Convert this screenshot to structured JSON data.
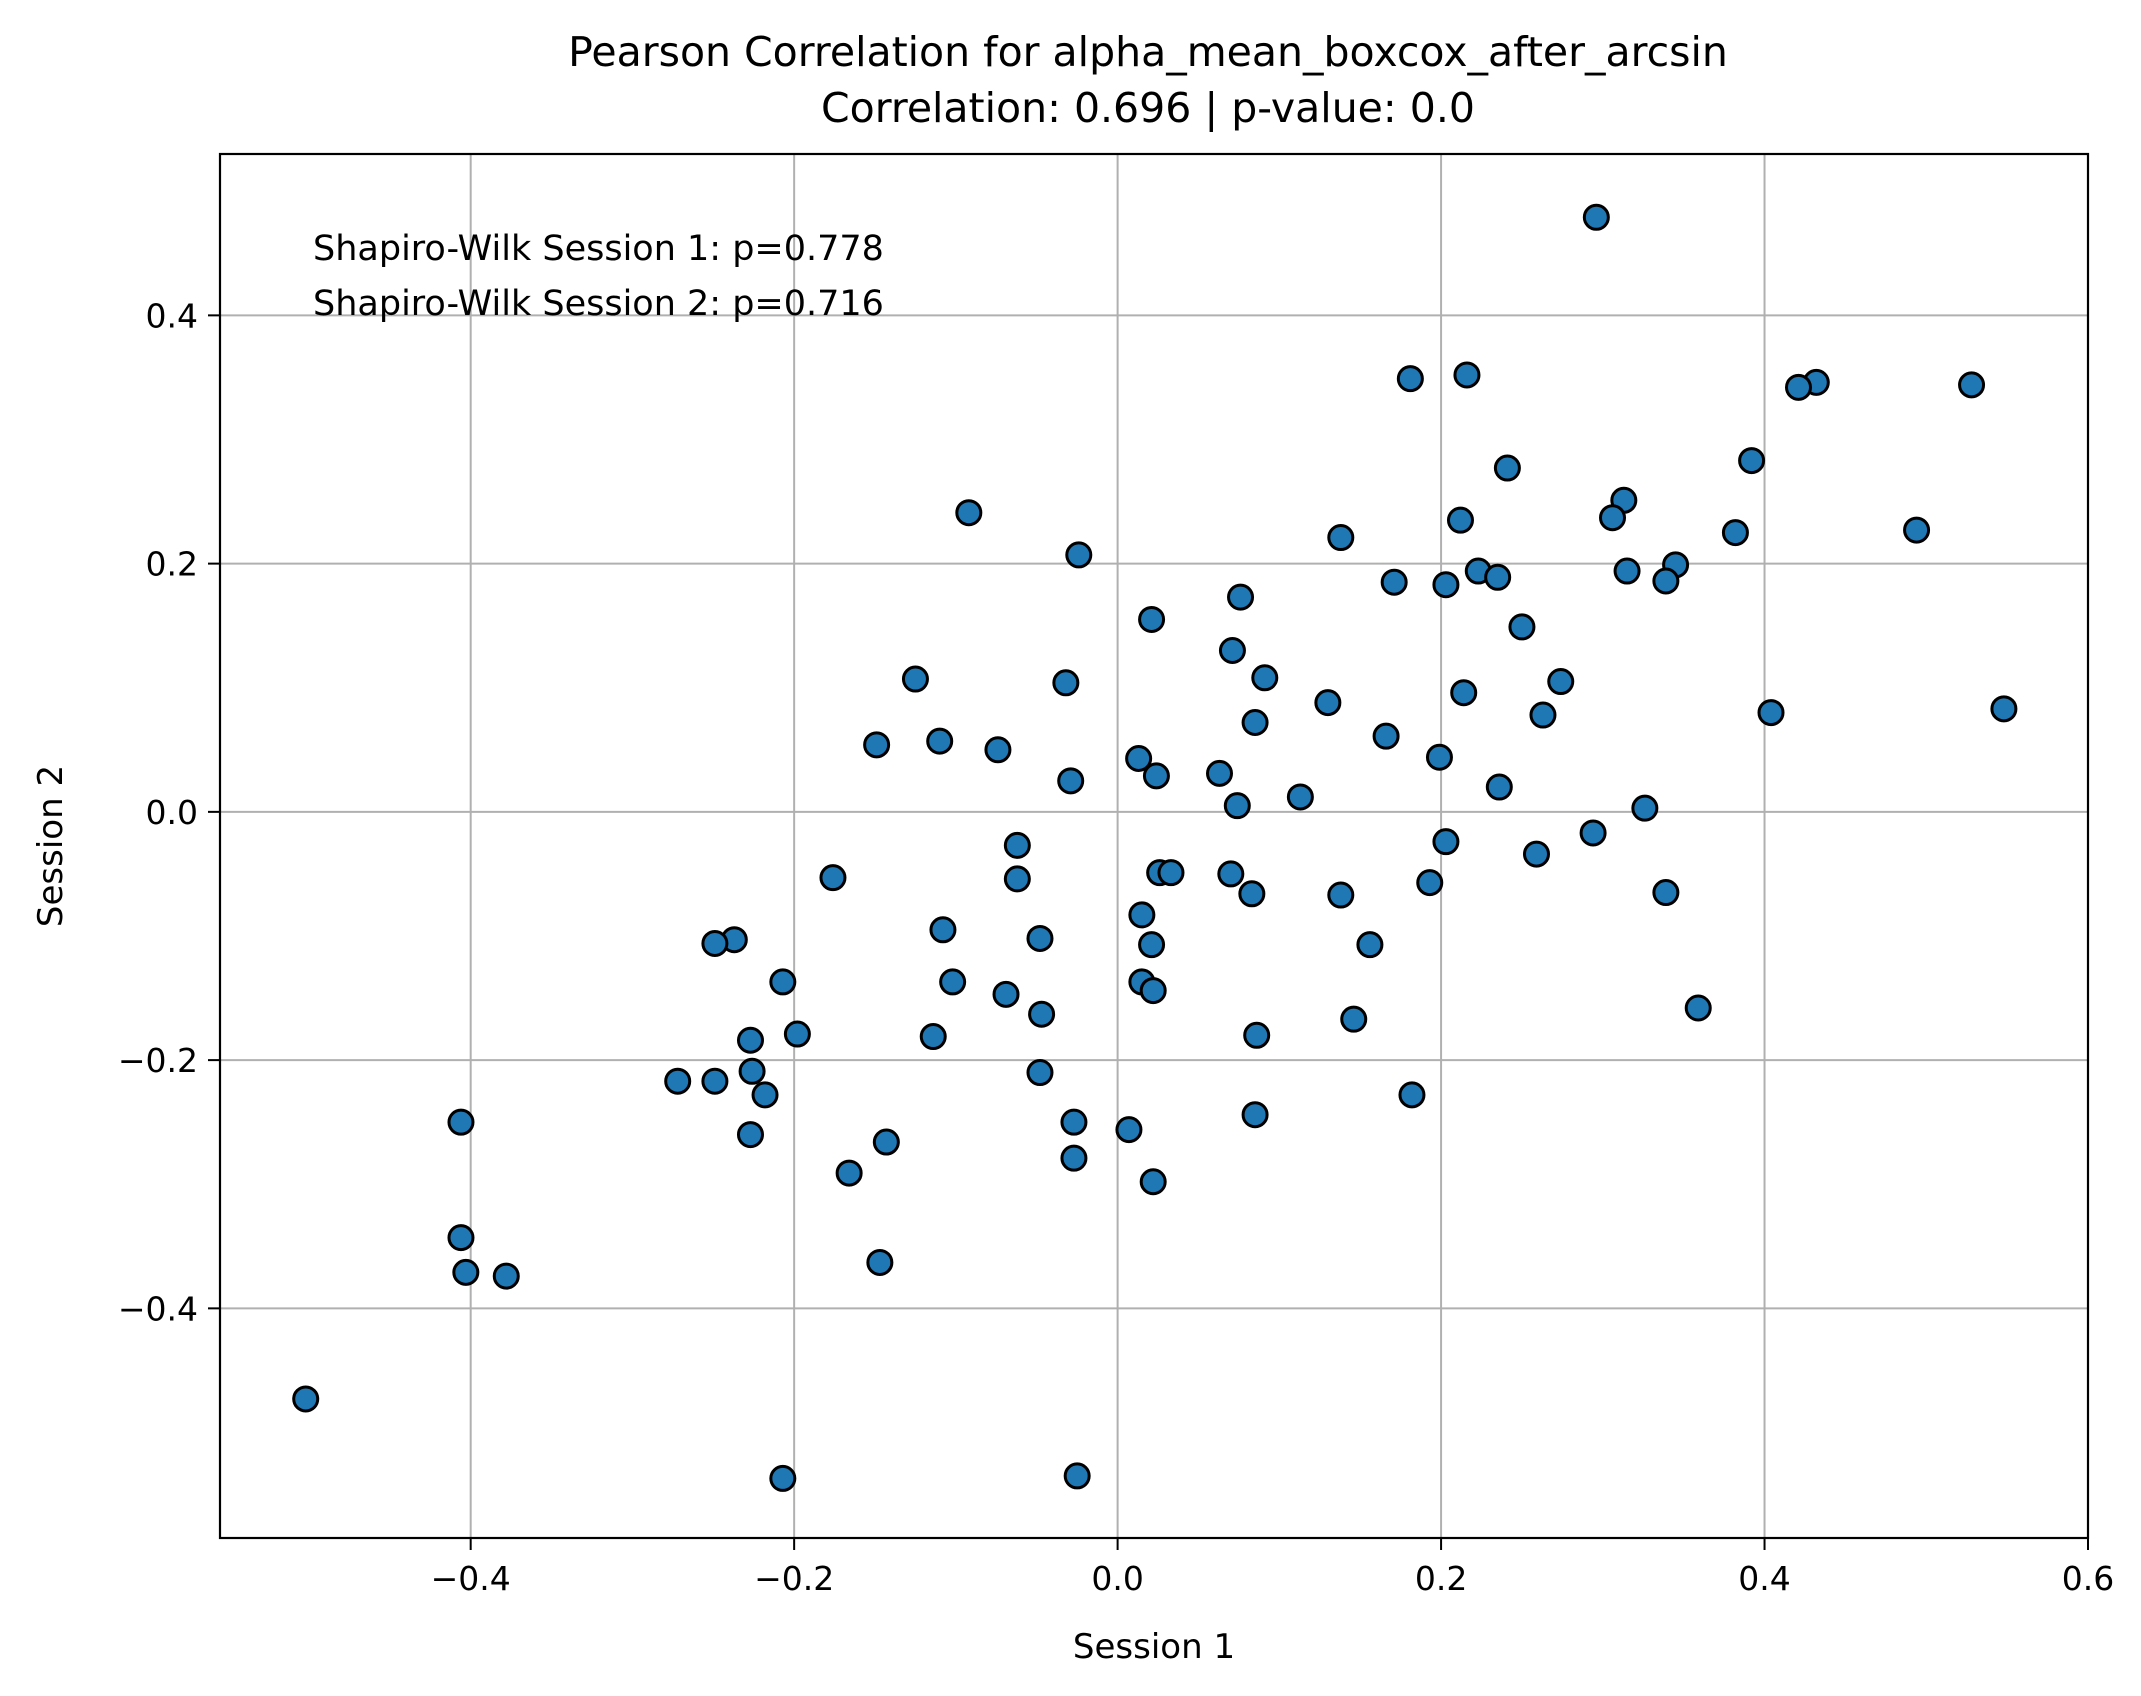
{
  "chart_data": {
    "type": "scatter",
    "title": "Pearson Correlation for alpha_mean_boxcox_after_arcsin",
    "subtitle": "Correlation: 0.696 | p-value: 0.0",
    "xlabel": "Session 1",
    "ylabel": "Session 2",
    "xlim": [
      -0.555,
      0.6
    ],
    "ylim": [
      -0.585,
      0.53
    ],
    "xticks": [
      -0.4,
      -0.2,
      0.0,
      0.2,
      0.4,
      0.6
    ],
    "yticks": [
      -0.4,
      -0.2,
      0.0,
      0.2,
      0.4
    ],
    "xtick_labels": [
      "−0.4",
      "−0.2",
      "0.0",
      "0.2",
      "0.4",
      "0.6"
    ],
    "ytick_labels": [
      "−0.4",
      "−0.2",
      "0.0",
      "0.2",
      "0.4"
    ],
    "grid": true,
    "marker_color": "#1f77b4",
    "marker_edge_color": "#000000",
    "annotations": [
      "Shapiro-Wilk Session 1: p=0.778",
      "Shapiro-Wilk Session 2: p=0.716"
    ],
    "points": [
      [
        0.296,
        0.479
      ],
      [
        0.216,
        0.352
      ],
      [
        0.181,
        0.349
      ],
      [
        0.432,
        0.346
      ],
      [
        0.421,
        0.342
      ],
      [
        0.528,
        0.344
      ],
      [
        0.241,
        0.277
      ],
      [
        0.392,
        0.283
      ],
      [
        0.313,
        0.251
      ],
      [
        0.306,
        0.237
      ],
      [
        0.212,
        0.235
      ],
      [
        -0.092,
        0.241
      ],
      [
        0.138,
        0.221
      ],
      [
        0.382,
        0.225
      ],
      [
        0.494,
        0.227
      ],
      [
        -0.024,
        0.207
      ],
      [
        0.223,
        0.194
      ],
      [
        0.235,
        0.189
      ],
      [
        0.315,
        0.194
      ],
      [
        0.345,
        0.199
      ],
      [
        0.339,
        0.186
      ],
      [
        0.171,
        0.185
      ],
      [
        0.203,
        0.183
      ],
      [
        0.076,
        0.173
      ],
      [
        0.021,
        0.155
      ],
      [
        0.25,
        0.149
      ],
      [
        0.071,
        0.13
      ],
      [
        -0.125,
        0.107
      ],
      [
        0.091,
        0.108
      ],
      [
        -0.032,
        0.104
      ],
      [
        0.274,
        0.105
      ],
      [
        0.214,
        0.096
      ],
      [
        0.13,
        0.088
      ],
      [
        0.404,
        0.08
      ],
      [
        0.548,
        0.083
      ],
      [
        0.263,
        0.078
      ],
      [
        0.085,
        0.072
      ],
      [
        0.166,
        0.061
      ],
      [
        -0.11,
        0.057
      ],
      [
        -0.149,
        0.054
      ],
      [
        -0.074,
        0.05
      ],
      [
        0.013,
        0.043
      ],
      [
        0.199,
        0.044
      ],
      [
        0.024,
        0.029
      ],
      [
        0.063,
        0.031
      ],
      [
        -0.029,
        0.025
      ],
      [
        0.236,
        0.02
      ],
      [
        0.113,
        0.012
      ],
      [
        0.074,
        0.005
      ],
      [
        0.326,
        0.003
      ],
      [
        0.294,
        -0.017
      ],
      [
        0.203,
        -0.024
      ],
      [
        -0.062,
        -0.027
      ],
      [
        0.259,
        -0.034
      ],
      [
        0.026,
        -0.049
      ],
      [
        0.033,
        -0.049
      ],
      [
        0.07,
        -0.05
      ],
      [
        -0.176,
        -0.053
      ],
      [
        -0.062,
        -0.054
      ],
      [
        0.193,
        -0.057
      ],
      [
        0.083,
        -0.066
      ],
      [
        0.138,
        -0.067
      ],
      [
        0.339,
        -0.065
      ],
      [
        0.015,
        -0.083
      ],
      [
        -0.108,
        -0.095
      ],
      [
        -0.237,
        -0.103
      ],
      [
        -0.048,
        -0.102
      ],
      [
        -0.249,
        -0.106
      ],
      [
        0.156,
        -0.107
      ],
      [
        0.021,
        -0.107
      ],
      [
        -0.102,
        -0.137
      ],
      [
        0.015,
        -0.137
      ],
      [
        -0.207,
        -0.137
      ],
      [
        0.022,
        -0.144
      ],
      [
        -0.069,
        -0.147
      ],
      [
        0.359,
        -0.158
      ],
      [
        -0.047,
        -0.163
      ],
      [
        0.146,
        -0.167
      ],
      [
        -0.198,
        -0.179
      ],
      [
        0.086,
        -0.18
      ],
      [
        -0.114,
        -0.181
      ],
      [
        -0.227,
        -0.184
      ],
      [
        -0.048,
        -0.21
      ],
      [
        -0.226,
        -0.209
      ],
      [
        -0.272,
        -0.217
      ],
      [
        -0.249,
        -0.217
      ],
      [
        -0.218,
        -0.228
      ],
      [
        0.182,
        -0.228
      ],
      [
        0.085,
        -0.244
      ],
      [
        -0.406,
        -0.25
      ],
      [
        -0.027,
        -0.25
      ],
      [
        0.007,
        -0.256
      ],
      [
        -0.227,
        -0.26
      ],
      [
        -0.143,
        -0.266
      ],
      [
        -0.027,
        -0.279
      ],
      [
        -0.166,
        -0.291
      ],
      [
        0.022,
        -0.298
      ],
      [
        -0.147,
        -0.363
      ],
      [
        -0.406,
        -0.343
      ],
      [
        -0.403,
        -0.371
      ],
      [
        -0.378,
        -0.374
      ],
      [
        -0.502,
        -0.473
      ],
      [
        -0.207,
        -0.537
      ],
      [
        -0.025,
        -0.535
      ]
    ]
  }
}
